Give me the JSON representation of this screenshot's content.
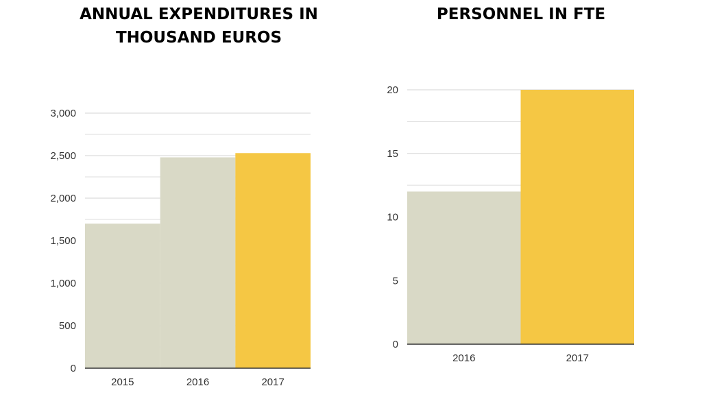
{
  "colors": {
    "bar_default": "#d9d9c6",
    "bar_highlight": "#f5c744",
    "grid": "#dcdcdc",
    "baseline": "#333333"
  },
  "chart_data": [
    {
      "type": "bar",
      "title": "ANNUAL EXPENDITURES IN THOUSAND EUROS",
      "categories": [
        "2015",
        "2016",
        "2017"
      ],
      "values": [
        1700,
        2480,
        2530
      ],
      "highlight_index": 2,
      "ylim": [
        0,
        3000
      ],
      "yticks": [
        0,
        500,
        1000,
        1500,
        2000,
        2500,
        3000
      ],
      "ytick_labels": [
        "0",
        "500",
        "1,000",
        "1,500",
        "2,000",
        "2,500",
        "3,000"
      ],
      "grid": true,
      "xlabel": "",
      "ylabel": ""
    },
    {
      "type": "bar",
      "title": "PERSONNEL IN FTE",
      "categories": [
        "2016",
        "2017"
      ],
      "values": [
        12,
        20
      ],
      "highlight_index": 1,
      "ylim": [
        0,
        20
      ],
      "yticks": [
        0,
        5,
        10,
        15,
        20
      ],
      "ytick_labels": [
        "0",
        "5",
        "10",
        "15",
        "20"
      ],
      "grid": true,
      "xlabel": "",
      "ylabel": ""
    }
  ]
}
